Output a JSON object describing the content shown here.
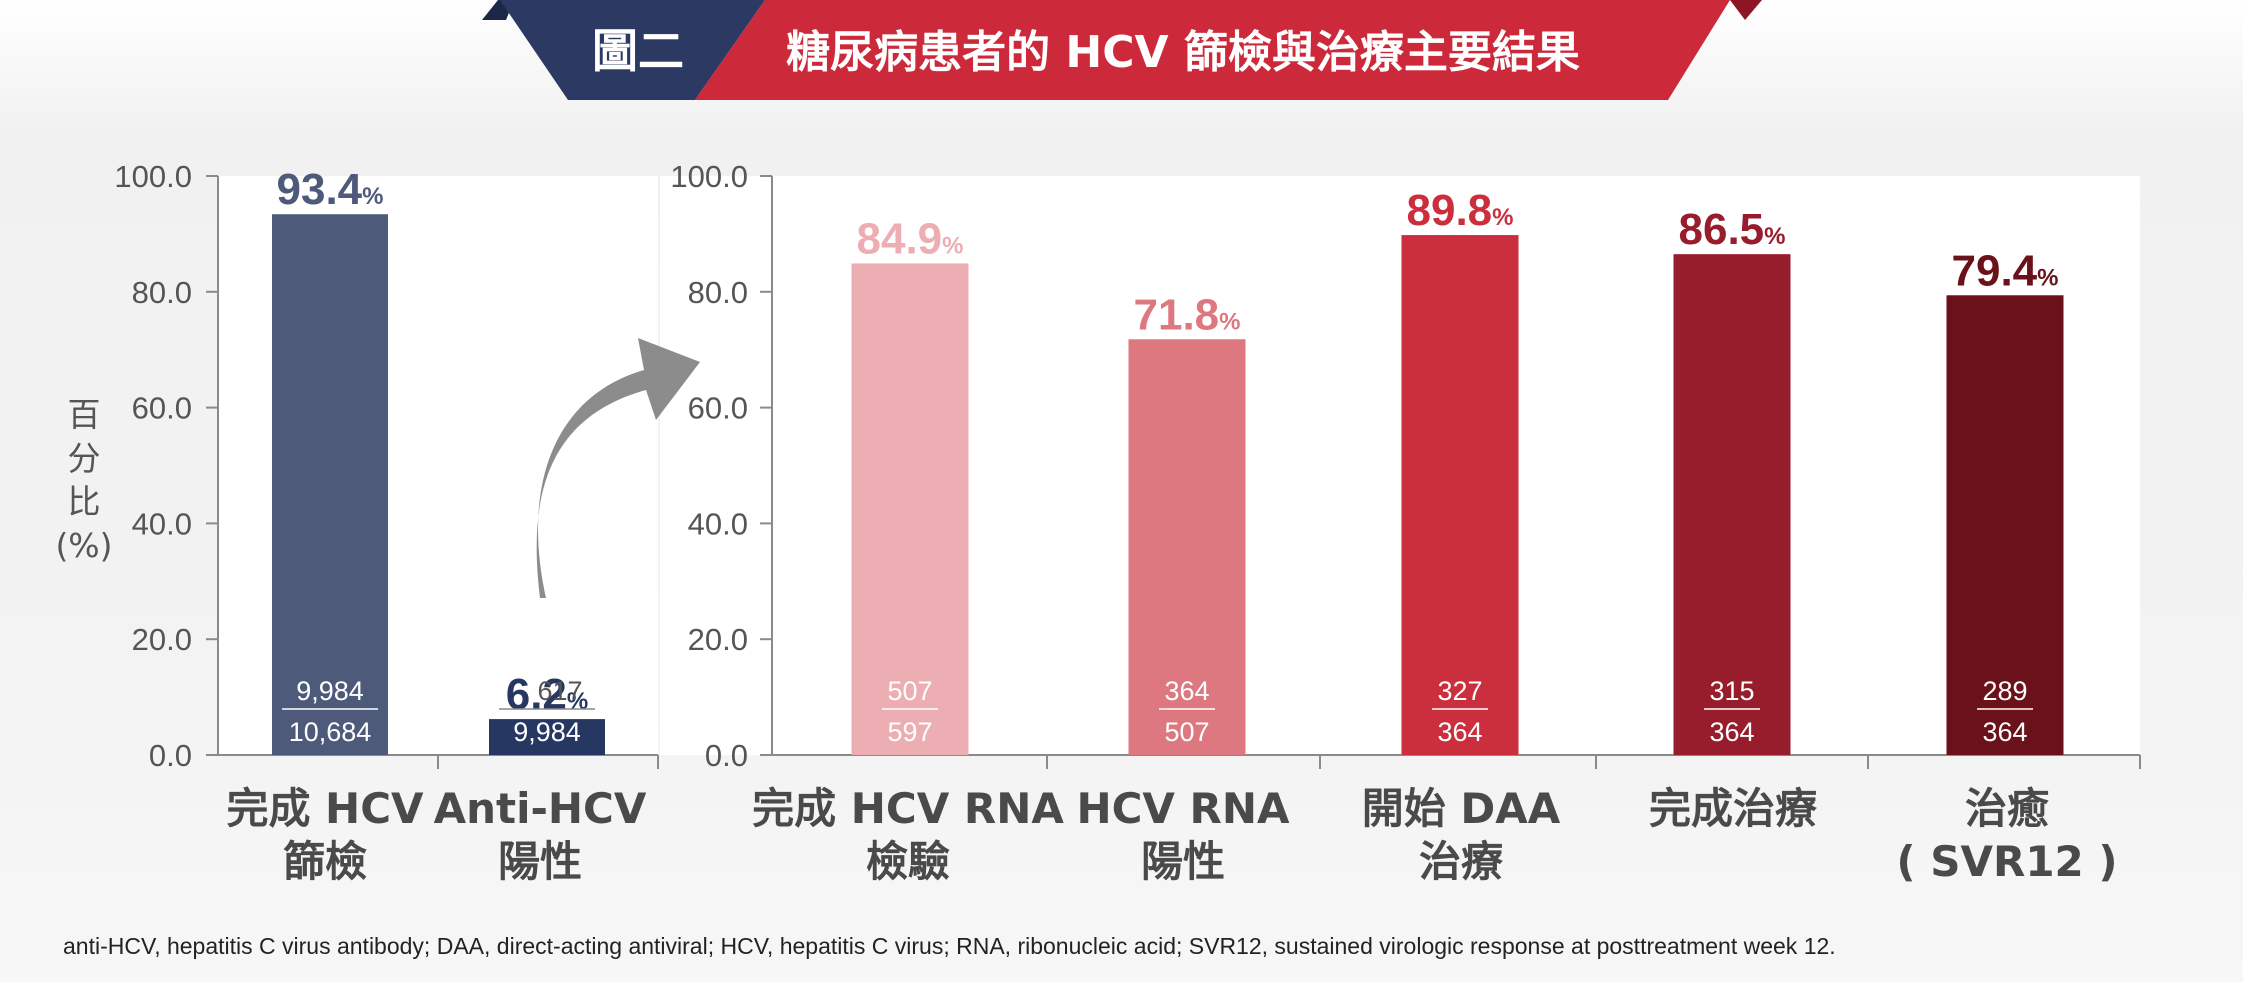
{
  "banner": {
    "label": "圖二",
    "title": "糖尿病患者的 HCV 篩檢與治療主要結果",
    "colors": {
      "label_bg": "#2c3a63",
      "title_bg": "#cc2a3b",
      "dark_corner": "#8d1524"
    }
  },
  "footnote": "anti-HCV, hepatitis C virus antibody; DAA, direct-acting antiviral; HCV, hepatitis C virus; RNA, ribonucleic acid; SVR12, sustained virologic response at posttreatment week 12.",
  "chart_data": [
    {
      "type": "bar",
      "ylabel": [
        "百",
        "分",
        "比",
        "(%)"
      ],
      "ylim": [
        0,
        100
      ],
      "yticks": [
        "0.0",
        "20.0",
        "40.0",
        "60.0",
        "80.0",
        "100.0"
      ],
      "categories": [
        {
          "lines": [
            "完成 HCV",
            "篩檢"
          ]
        },
        {
          "lines": [
            "Anti-HCV",
            "陽性"
          ]
        }
      ],
      "values": [
        93.4,
        6.2
      ],
      "value_labels": [
        "93.4",
        "6.2"
      ],
      "unit": "%",
      "numerators": [
        "9,984",
        "617"
      ],
      "denominators": [
        "10,684",
        "9,984"
      ],
      "colors": [
        "#4e5a7a",
        "#263761"
      ],
      "label_colors": [
        "#4e5a7a",
        "#263761"
      ]
    },
    {
      "type": "bar",
      "ylim": [
        0,
        100
      ],
      "yticks": [
        "0.0",
        "20.0",
        "40.0",
        "60.0",
        "80.0",
        "100.0"
      ],
      "categories": [
        {
          "lines": [
            "完成 HCV RNA",
            "檢驗"
          ]
        },
        {
          "lines": [
            "HCV RNA",
            "陽性"
          ]
        },
        {
          "lines": [
            "開始 DAA",
            "治療"
          ]
        },
        {
          "lines": [
            "完成治療"
          ]
        },
        {
          "lines": [
            "治癒",
            "( SVR12 )"
          ]
        }
      ],
      "values": [
        84.9,
        71.8,
        89.8,
        86.5,
        79.4
      ],
      "value_labels": [
        "84.9",
        "71.8",
        "89.8",
        "86.5",
        "79.4"
      ],
      "unit": "%",
      "numerators": [
        "507",
        "364",
        "327",
        "315",
        "289"
      ],
      "denominators": [
        "597",
        "507",
        "364",
        "364",
        "364"
      ],
      "colors": [
        "#ecaeb3",
        "#de7880",
        "#cb2e3d",
        "#971c2c",
        "#6a111a"
      ],
      "label_colors": [
        "#ecaeb3",
        "#de7880",
        "#cb2e3d",
        "#971c2c",
        "#6a111a"
      ]
    }
  ]
}
